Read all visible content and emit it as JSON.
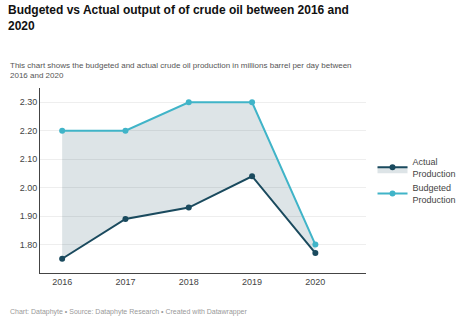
{
  "chart_data": {
    "type": "line",
    "title": "Budgeted vs Actual output of of crude oil between 2016 and\n2020",
    "subtitle": "This chart shows the budgeted and actual crude oil production in millions barrel per day between\n2016 and 2020",
    "annotations": [
      "Chart: Dataphyte • Source: Dataphyte Research • Created with Datawrapper"
    ],
    "x": [
      2016,
      2017,
      2018,
      2019,
      2020
    ],
    "series": [
      {
        "name": "Budgeted\nProduction",
        "color": "#40b4c8",
        "marker": "circle",
        "values": [
          2.2,
          2.2,
          2.3,
          2.3,
          1.8
        ]
      },
      {
        "name": "Actual\nProduction",
        "color": "#1a4a5e",
        "marker": "circle",
        "values": [
          1.75,
          1.89,
          1.93,
          2.04,
          1.77
        ]
      }
    ],
    "xlim": [
      2015.65,
      2020.8
    ],
    "xticks": [
      2016,
      2017,
      2018,
      2019,
      2020
    ],
    "ylim": [
      1.7,
      2.35
    ],
    "yticks": [
      {
        "value": 1.8,
        "label": "1.80"
      },
      {
        "value": 1.9,
        "label": "1.90"
      },
      {
        "value": 2.0,
        "label": "2.00"
      },
      {
        "value": 2.1,
        "label": "2.10"
      },
      {
        "value": 2.2,
        "label": "2.20"
      },
      {
        "value": 2.3,
        "label": "2.30"
      }
    ],
    "grid": "y",
    "legend": "right"
  }
}
